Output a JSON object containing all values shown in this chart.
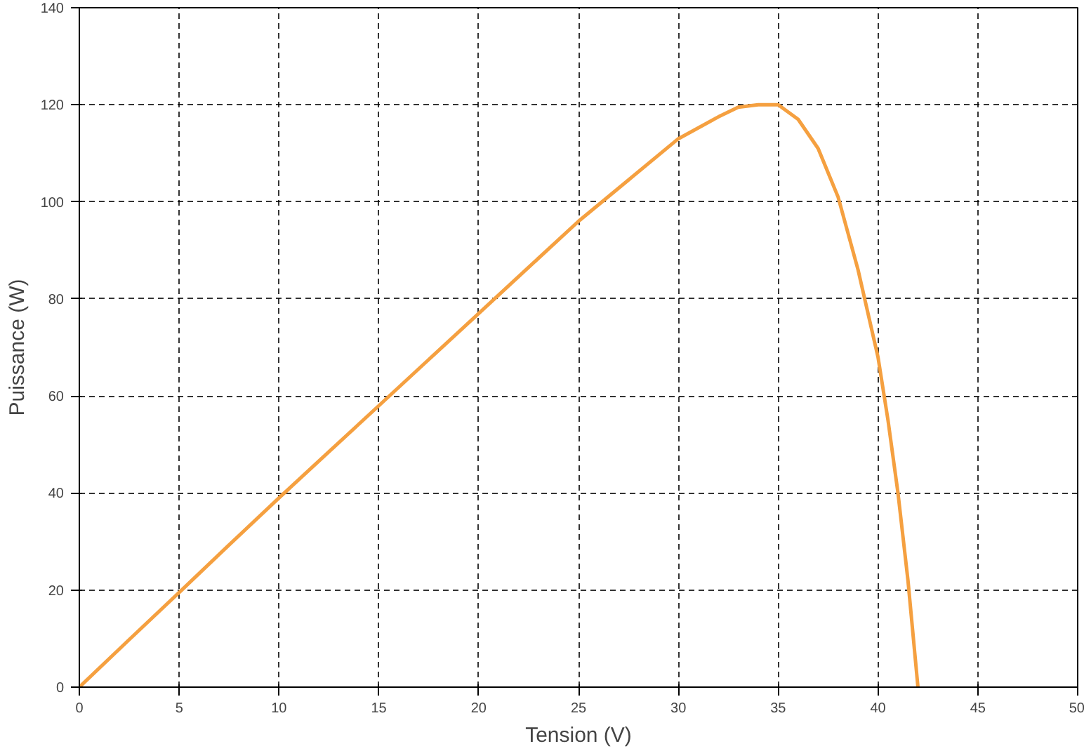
{
  "chart_data": {
    "type": "line",
    "xlabel": "Tension (V)",
    "ylabel": "Puissance (W)",
    "x": [
      0,
      2.5,
      5,
      7.5,
      10,
      12.5,
      15,
      17.5,
      20,
      22.5,
      25,
      27.5,
      30,
      32,
      33,
      34,
      35,
      36,
      37,
      38,
      39,
      40,
      40.5,
      41,
      41.5,
      42
    ],
    "series": [
      {
        "color": "#f5a040",
        "values": [
          0,
          9.8,
          19.5,
          29.3,
          39,
          48.5,
          58,
          67.5,
          77,
          86.5,
          96,
          104.5,
          113,
          117.5,
          119.5,
          120,
          120,
          117,
          111,
          101,
          86,
          68,
          55,
          40,
          22,
          0
        ]
      }
    ],
    "xlim": [
      0,
      50
    ],
    "ylim": [
      0,
      140
    ],
    "xticks": [
      0,
      5,
      10,
      15,
      20,
      25,
      30,
      35,
      40,
      45,
      50
    ],
    "yticks": [
      0,
      20,
      40,
      60,
      80,
      100,
      120,
      140
    ],
    "grid": true,
    "marker": "none",
    "line_style": "solid"
  }
}
